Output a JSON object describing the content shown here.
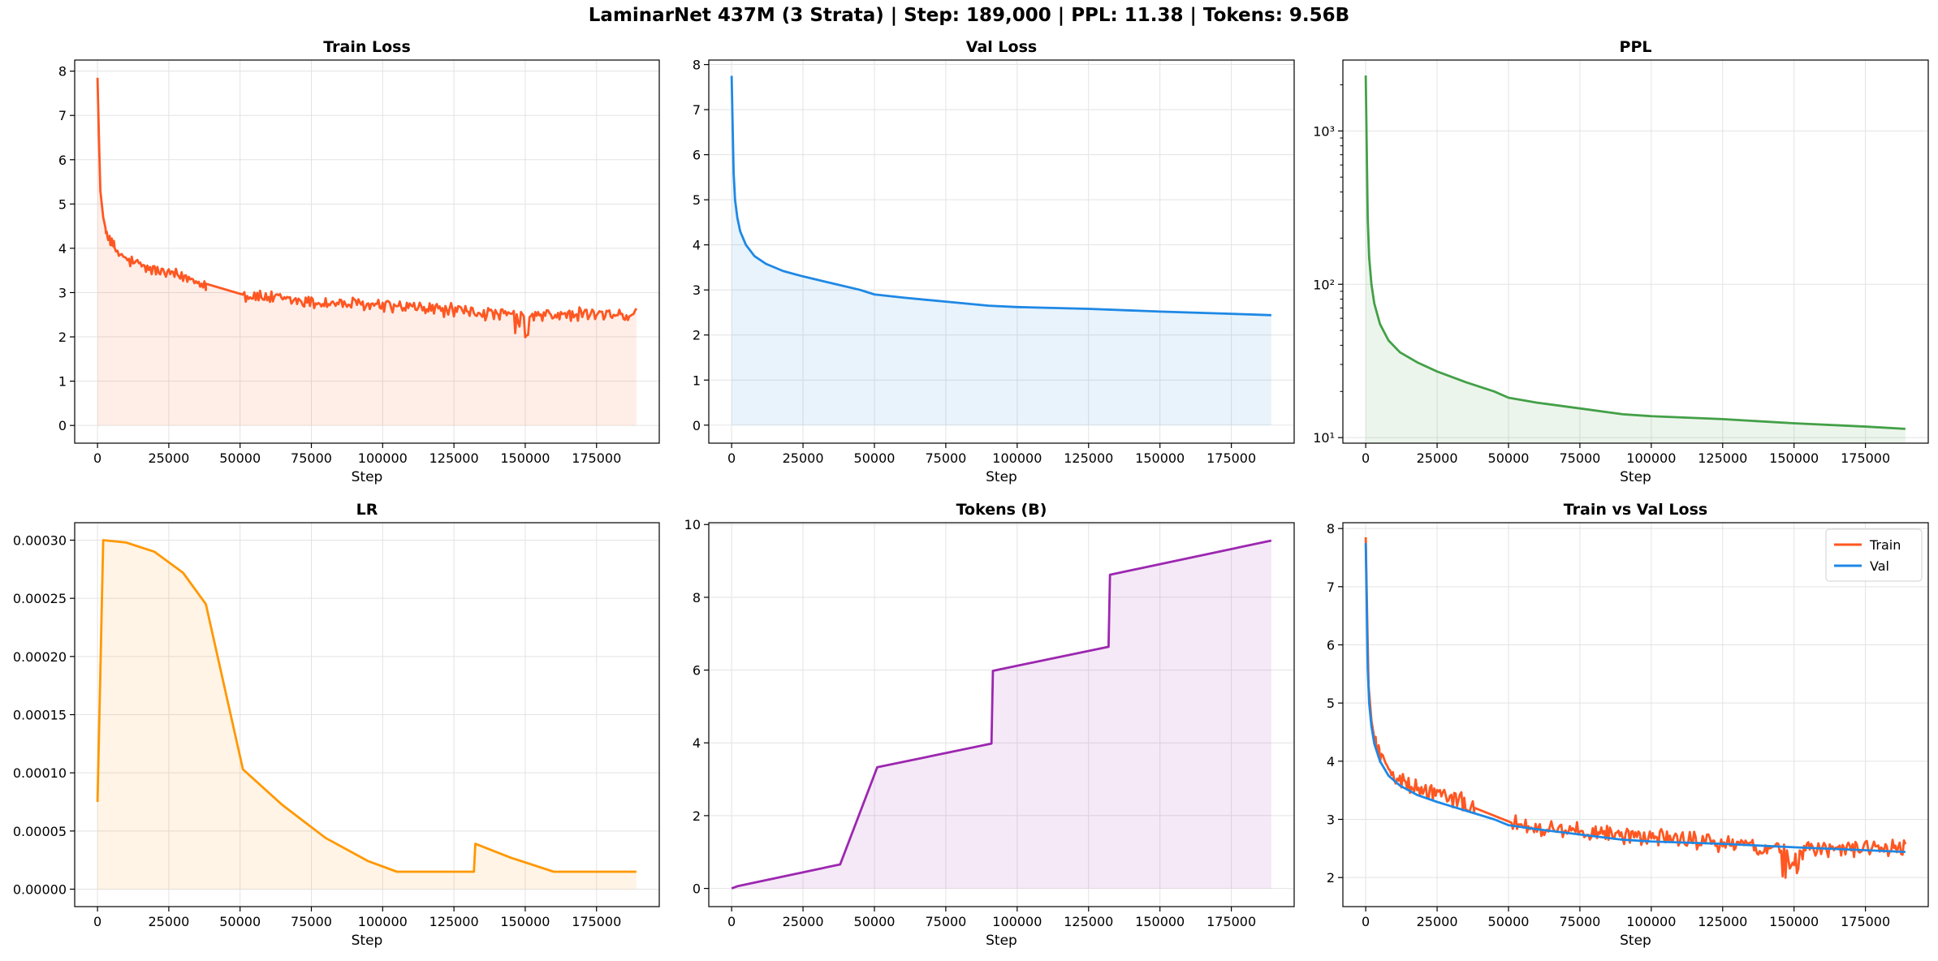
{
  "figure": {
    "suptitle": "LaminarNet 437M (3 Strata) | Step: 189,000 | PPL: 11.38 | Tokens: 9.56B"
  },
  "colors": {
    "train": "#ff5722",
    "val": "#1e88e5",
    "ppl": "#43a047",
    "lr": "#ff9800",
    "tokens": "#9c27b0"
  },
  "chart_data": [
    {
      "id": "train-loss",
      "type": "area",
      "title": "Train Loss",
      "xlabel": "Step",
      "ylabel": "",
      "xlim": [
        -8000,
        197000
      ],
      "ylim": [
        -0.4,
        8.25
      ],
      "xticks": [
        0,
        25000,
        50000,
        75000,
        100000,
        125000,
        150000,
        175000
      ],
      "yticks": [
        0,
        1,
        2,
        3,
        4,
        5,
        6,
        7,
        8
      ],
      "grid": true,
      "series": [
        {
          "color": "#ff5722",
          "fill": true,
          "noise": 0.13,
          "points": [
            [
              0,
              7.85
            ],
            [
              500,
              6.5
            ],
            [
              1000,
              5.3
            ],
            [
              2000,
              4.7
            ],
            [
              3000,
              4.4
            ],
            [
              5000,
              4.1
            ],
            [
              7000,
              3.9
            ],
            [
              10000,
              3.75
            ],
            [
              15000,
              3.6
            ],
            [
              20000,
              3.5
            ],
            [
              25000,
              3.42
            ],
            [
              30000,
              3.35
            ],
            [
              35000,
              3.28
            ],
            [
              38000,
              3.2
            ],
            [
              50000,
              2.95
            ],
            [
              60000,
              2.88
            ],
            [
              75000,
              2.78
            ],
            [
              100000,
              2.7
            ],
            [
              125000,
              2.6
            ],
            [
              140000,
              2.5
            ],
            [
              150000,
              2.45
            ],
            [
              160000,
              2.5
            ],
            [
              175000,
              2.5
            ],
            [
              189000,
              2.5
            ]
          ],
          "gaps": [
            [
              38000,
              51000
            ]
          ]
        }
      ]
    },
    {
      "id": "val-loss",
      "type": "area",
      "title": "Val Loss",
      "xlabel": "Step",
      "ylabel": "",
      "xlim": [
        -8000,
        197000
      ],
      "ylim": [
        -0.4,
        8.1
      ],
      "xticks": [
        0,
        25000,
        50000,
        75000,
        100000,
        125000,
        150000,
        175000
      ],
      "yticks": [
        0,
        1,
        2,
        3,
        4,
        5,
        6,
        7,
        8
      ],
      "grid": true,
      "series": [
        {
          "color": "#1e88e5",
          "fill": true,
          "points": [
            [
              0,
              7.75
            ],
            [
              300,
              6.8
            ],
            [
              700,
              5.6
            ],
            [
              1200,
              5.0
            ],
            [
              2000,
              4.6
            ],
            [
              3000,
              4.3
            ],
            [
              5000,
              4.0
            ],
            [
              8000,
              3.75
            ],
            [
              12000,
              3.58
            ],
            [
              18000,
              3.42
            ],
            [
              25000,
              3.3
            ],
            [
              35000,
              3.15
            ],
            [
              45000,
              3.0
            ],
            [
              50000,
              2.9
            ],
            [
              60000,
              2.83
            ],
            [
              75000,
              2.74
            ],
            [
              90000,
              2.65
            ],
            [
              100000,
              2.62
            ],
            [
              125000,
              2.58
            ],
            [
              150000,
              2.52
            ],
            [
              175000,
              2.47
            ],
            [
              189000,
              2.44
            ]
          ]
        }
      ]
    },
    {
      "id": "ppl",
      "type": "area",
      "title": "PPL",
      "xlabel": "Step",
      "ylabel": "",
      "yscale": "log",
      "xlim": [
        -8000,
        197000
      ],
      "ylim": [
        9.2,
        2900
      ],
      "xticks": [
        0,
        25000,
        50000,
        75000,
        100000,
        125000,
        150000,
        175000
      ],
      "yticks": [
        10,
        100,
        1000
      ],
      "ytick_labels": [
        "10¹",
        "10²",
        "10³"
      ],
      "grid": true,
      "series": [
        {
          "color": "#43a047",
          "fill": true,
          "points": [
            [
              0,
              2300
            ],
            [
              300,
              900
            ],
            [
              700,
              270
            ],
            [
              1200,
              150
            ],
            [
              2000,
              100
            ],
            [
              3000,
              75
            ],
            [
              5000,
              55
            ],
            [
              8000,
              43
            ],
            [
              12000,
              36
            ],
            [
              18000,
              31
            ],
            [
              25000,
              27
            ],
            [
              35000,
              23
            ],
            [
              45000,
              20
            ],
            [
              50000,
              18.2
            ],
            [
              60000,
              16.9
            ],
            [
              75000,
              15.5
            ],
            [
              90000,
              14.2
            ],
            [
              100000,
              13.8
            ],
            [
              125000,
              13.2
            ],
            [
              150000,
              12.4
            ],
            [
              175000,
              11.8
            ],
            [
              189000,
              11.4
            ]
          ]
        }
      ]
    },
    {
      "id": "lr",
      "type": "area",
      "title": "LR",
      "xlabel": "Step",
      "ylabel": "",
      "xlim": [
        -8000,
        197000
      ],
      "ylim": [
        -1.5e-05,
        0.000315
      ],
      "xticks": [
        0,
        25000,
        50000,
        75000,
        100000,
        125000,
        150000,
        175000
      ],
      "yticks": [
        0,
        5e-05,
        0.0001,
        0.00015,
        0.0002,
        0.00025,
        0.0003
      ],
      "ytick_labels": [
        "0.00000",
        "0.00005",
        "0.00010",
        "0.00015",
        "0.00020",
        "0.00025",
        "0.00030"
      ],
      "grid": true,
      "series": [
        {
          "color": "#ff9800",
          "fill": true,
          "points": [
            [
              0,
              7.5e-05
            ],
            [
              2000,
              0.0003
            ],
            [
              10000,
              0.000298
            ],
            [
              20000,
              0.00029
            ],
            [
              30000,
              0.000272
            ],
            [
              38000,
              0.000245
            ],
            [
              51000,
              0.000103
            ],
            [
              65000,
              7.2e-05
            ],
            [
              80000,
              4.4e-05
            ],
            [
              95000,
              2.4e-05
            ],
            [
              105000,
              1.5e-05
            ],
            [
              132000,
              1.5e-05
            ],
            [
              132500,
              3.9e-05
            ],
            [
              145000,
              2.7e-05
            ],
            [
              160000,
              1.5e-05
            ],
            [
              189000,
              1.5e-05
            ]
          ]
        }
      ]
    },
    {
      "id": "tokens",
      "type": "area",
      "title": "Tokens (B)",
      "xlabel": "Step",
      "ylabel": "",
      "xlim": [
        -8000,
        197000
      ],
      "ylim": [
        -0.5,
        10.05
      ],
      "xticks": [
        0,
        25000,
        50000,
        75000,
        100000,
        125000,
        150000,
        175000
      ],
      "yticks": [
        0,
        2,
        4,
        6,
        8,
        10
      ],
      "grid": true,
      "series": [
        {
          "color": "#9c27b0",
          "fill": true,
          "points": [
            [
              0,
              0.0
            ],
            [
              2000,
              0.06
            ],
            [
              38000,
              0.66
            ],
            [
              51000,
              3.33
            ],
            [
              91000,
              3.98
            ],
            [
              91500,
              5.98
            ],
            [
              132000,
              6.64
            ],
            [
              132500,
              8.62
            ],
            [
              189000,
              9.56
            ]
          ]
        }
      ]
    },
    {
      "id": "train-vs-val",
      "type": "line",
      "title": "Train vs Val Loss",
      "xlabel": "Step",
      "ylabel": "",
      "xlim": [
        -8000,
        197000
      ],
      "ylim": [
        1.5,
        8.1
      ],
      "xticks": [
        0,
        25000,
        50000,
        75000,
        100000,
        125000,
        150000,
        175000
      ],
      "yticks": [
        2,
        3,
        4,
        5,
        6,
        7,
        8
      ],
      "grid": true,
      "legend": "top-right",
      "series": [
        {
          "name": "Train",
          "color": "#ff5722",
          "fill": false,
          "noise": 0.13,
          "points": [
            [
              0,
              7.85
            ],
            [
              500,
              6.5
            ],
            [
              1000,
              5.3
            ],
            [
              2000,
              4.7
            ],
            [
              3000,
              4.4
            ],
            [
              5000,
              4.1
            ],
            [
              7000,
              3.9
            ],
            [
              10000,
              3.75
            ],
            [
              15000,
              3.6
            ],
            [
              20000,
              3.5
            ],
            [
              25000,
              3.42
            ],
            [
              30000,
              3.35
            ],
            [
              35000,
              3.28
            ],
            [
              38000,
              3.2
            ],
            [
              50000,
              2.95
            ],
            [
              60000,
              2.88
            ],
            [
              75000,
              2.78
            ],
            [
              100000,
              2.7
            ],
            [
              125000,
              2.6
            ],
            [
              140000,
              2.5
            ],
            [
              150000,
              2.45
            ],
            [
              160000,
              2.5
            ],
            [
              175000,
              2.5
            ],
            [
              189000,
              2.5
            ]
          ],
          "gaps": [
            [
              38000,
              51000
            ]
          ]
        },
        {
          "name": "Val",
          "color": "#1e88e5",
          "fill": false,
          "points": [
            [
              0,
              7.75
            ],
            [
              300,
              6.8
            ],
            [
              700,
              5.6
            ],
            [
              1200,
              5.0
            ],
            [
              2000,
              4.6
            ],
            [
              3000,
              4.3
            ],
            [
              5000,
              4.0
            ],
            [
              8000,
              3.75
            ],
            [
              12000,
              3.58
            ],
            [
              18000,
              3.42
            ],
            [
              25000,
              3.3
            ],
            [
              35000,
              3.15
            ],
            [
              45000,
              3.0
            ],
            [
              50000,
              2.9
            ],
            [
              60000,
              2.83
            ],
            [
              75000,
              2.74
            ],
            [
              90000,
              2.65
            ],
            [
              100000,
              2.62
            ],
            [
              125000,
              2.58
            ],
            [
              150000,
              2.52
            ],
            [
              175000,
              2.47
            ],
            [
              189000,
              2.44
            ]
          ]
        }
      ]
    }
  ]
}
